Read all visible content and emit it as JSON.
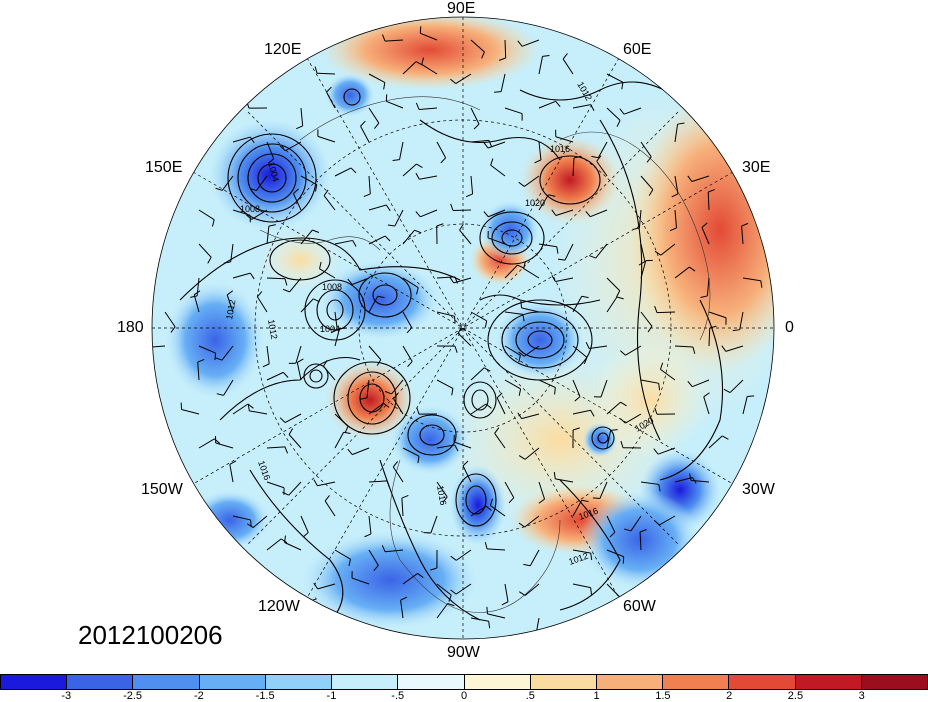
{
  "date_label": "2012100206",
  "longitude_labels": [
    {
      "id": "lon-90e",
      "text": "90E"
    },
    {
      "id": "lon-60e",
      "text": "60E"
    },
    {
      "id": "lon-120e",
      "text": "120E"
    },
    {
      "id": "lon-150e",
      "text": "150E"
    },
    {
      "id": "lon-30e",
      "text": "30E"
    },
    {
      "id": "lon-180",
      "text": "180"
    },
    {
      "id": "lon-0",
      "text": "0"
    },
    {
      "id": "lon-150w",
      "text": "150W"
    },
    {
      "id": "lon-30w",
      "text": "30W"
    },
    {
      "id": "lon-120w",
      "text": "120W"
    },
    {
      "id": "lon-60w",
      "text": "60W"
    },
    {
      "id": "lon-90w",
      "text": "90W"
    }
  ],
  "contour_labels": [
    "1004",
    "1008",
    "1012",
    "1016",
    "1020",
    "1004",
    "1008",
    "1012",
    "1016",
    "1020",
    "1012",
    "1016",
    "1012",
    "1016",
    "1012"
  ],
  "colorbar": {
    "colors": [
      "#1a1adc",
      "#3a64e6",
      "#4f8fef",
      "#67aff5",
      "#8fd1f9",
      "#c6eefb",
      "#e8f8fc",
      "#fdf6d6",
      "#fbdca0",
      "#f7b07a",
      "#f0804f",
      "#e34a36",
      "#c21a24",
      "#9b0e1d"
    ],
    "tick_labels": [
      "-3",
      "-2.5",
      "-2",
      "-1.5",
      "-1",
      "-.5",
      "0",
      ".5",
      "1",
      "1.5",
      "2",
      "2.5",
      "3"
    ]
  }
}
